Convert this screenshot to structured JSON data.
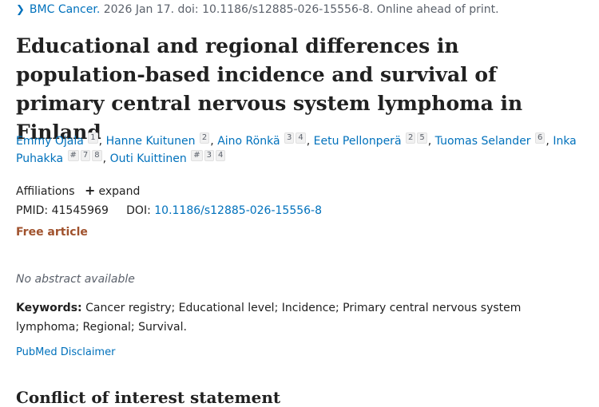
{
  "journal": {
    "chevron_icon": "chevron-right-icon",
    "name": "BMC Cancer.",
    "citation": "2026 Jan 17. doi: 10.1186/s12885-026-15556-8. Online ahead of print."
  },
  "title": "Educational and regional differences in population-based incidence and survival of primary central nervous system lymphoma in Finland",
  "authors": [
    {
      "name": "Emmy Ojala",
      "sups": [
        "1"
      ]
    },
    {
      "name": "Hanne Kuitunen",
      "sups": [
        "2"
      ]
    },
    {
      "name": "Aino Rönkä",
      "sups": [
        "3",
        "4"
      ]
    },
    {
      "name": "Eetu Pellonperä",
      "sups": [
        "2",
        "5"
      ]
    },
    {
      "name": "Tuomas Selander",
      "sups": [
        "6"
      ]
    },
    {
      "name": "Inka Puhakka",
      "sups": [
        "#",
        "7",
        "8"
      ]
    },
    {
      "name": "Outi Kuittinen",
      "sups": [
        "#",
        "3",
        "4"
      ]
    }
  ],
  "affiliations": {
    "label": "Affiliations",
    "expand_label": "expand"
  },
  "identifiers": {
    "pmid_label": "PMID:",
    "pmid": "41545969",
    "doi_label": "DOI:",
    "doi": "10.1186/s12885-026-15556-8"
  },
  "free_article": "Free article",
  "no_abstract": "No abstract available",
  "keywords": {
    "label": "Keywords:",
    "text": "Cancer registry; Educational level; Incidence; Primary central nervous system lymphoma; Regional; Survival."
  },
  "disclaimer": "PubMed Disclaimer",
  "next_section": "Conflict of interest statement",
  "colors": {
    "link": "#0071bc",
    "free_article": "#a0522d",
    "text": "#212121",
    "muted": "#5b616b"
  }
}
